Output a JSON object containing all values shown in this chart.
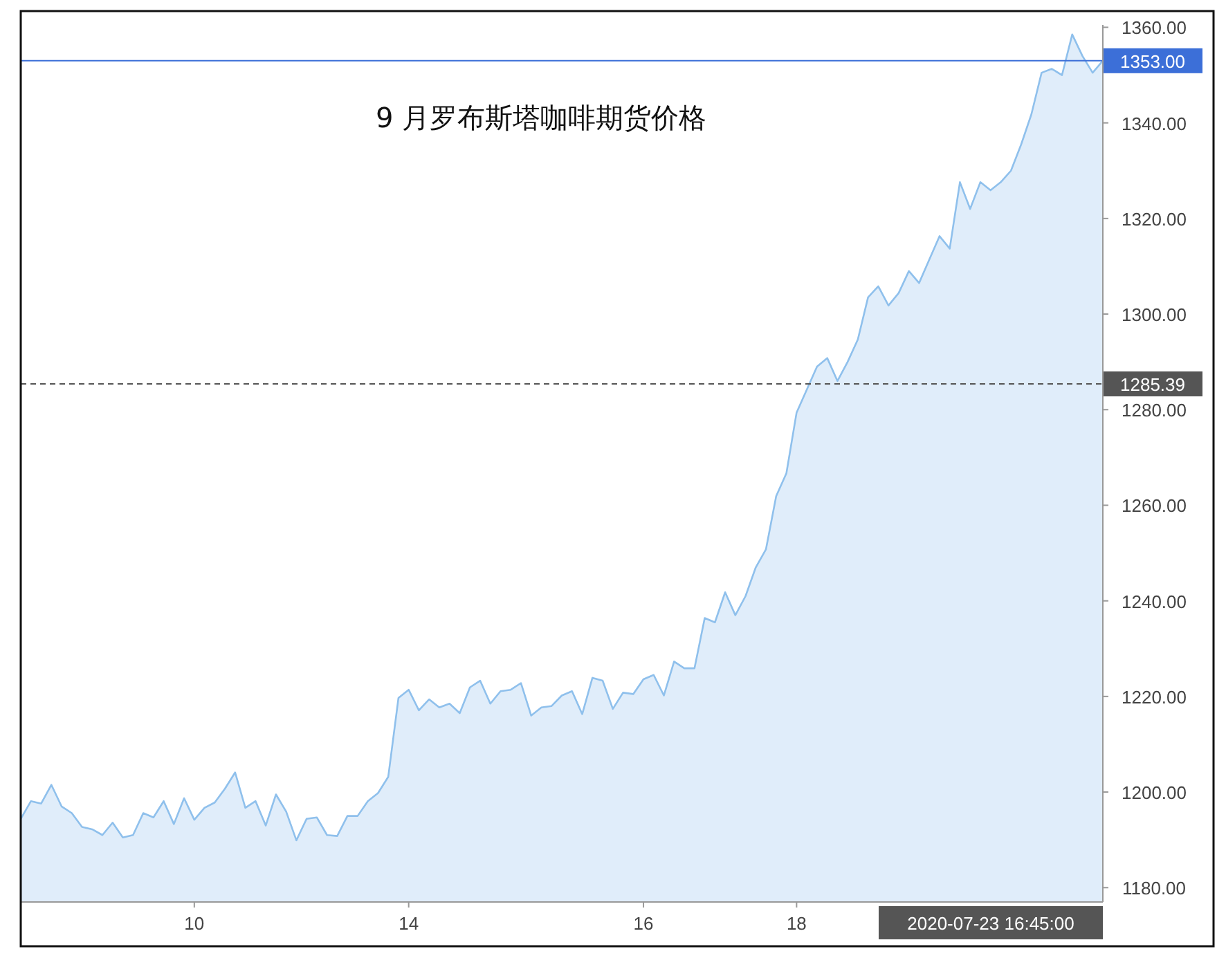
{
  "chart_data": {
    "type": "area",
    "title": "9 月罗布斯塔咖啡期货价格",
    "categories": [
      null,
      null,
      null,
      null,
      null,
      null,
      null,
      null,
      null,
      null,
      null,
      null,
      null,
      null,
      null,
      null,
      null,
      "10",
      null,
      null,
      null,
      null,
      null,
      null,
      null,
      null,
      null,
      null,
      null,
      null,
      null,
      null,
      null,
      null,
      null,
      null,
      null,
      null,
      "14",
      null,
      null,
      null,
      null,
      null,
      null,
      null,
      null,
      null,
      null,
      null,
      null,
      null,
      null,
      null,
      null,
      null,
      null,
      null,
      null,
      null,
      null,
      "16",
      null,
      null,
      null,
      null,
      null,
      null,
      null,
      null,
      null,
      null,
      null,
      null,
      null,
      null,
      "18",
      null,
      null,
      null,
      null,
      null,
      null,
      null,
      null,
      null,
      null,
      null,
      null,
      null,
      null,
      null,
      null,
      null,
      null,
      null,
      null,
      null,
      null,
      null,
      null,
      null,
      null,
      null,
      null,
      null,
      null
    ],
    "series": [
      {
        "color": "#8fc0ec",
        "values": [
          1194.4,
          1198.1,
          1197.6,
          1201.5,
          1197,
          1195.6,
          1192.7,
          1192.2,
          1191,
          1193.6,
          1190.5,
          1191,
          1195.6,
          1194.7,
          1198.1,
          1193.3,
          1198.7,
          1194.2,
          1196.7,
          1197.8,
          1200.7,
          1204.1,
          1196.7,
          1198.1,
          1193,
          1199.5,
          1195.9,
          1189.9,
          1194.4,
          1194.7,
          1191,
          1190.8,
          1195,
          1195,
          1198.1,
          1199.8,
          1203.2,
          1219.7,
          1221.4,
          1217.1,
          1219.4,
          1217.7,
          1218.5,
          1216.5,
          1221.9,
          1223.3,
          1218.5,
          1221.1,
          1221.4,
          1222.8,
          1216,
          1217.7,
          1218,
          1220.2,
          1221.1,
          1216.3,
          1223.9,
          1223.3,
          1217.4,
          1220.8,
          1220.5,
          1223.6,
          1224.5,
          1220.2,
          1227.3,
          1225.9,
          1225.9,
          1236.4,
          1235.5,
          1241.8,
          1237,
          1241,
          1247,
          1250.8,
          1261.9,
          1266.7,
          1279.4,
          1284.2,
          1289,
          1290.8,
          1286,
          1290,
          1294.7,
          1303.5,
          1305.8,
          1301.8,
          1304.4,
          1309,
          1306.5,
          1311.4,
          1316.3,
          1313.7,
          1327.6,
          1322,
          1327.6,
          1325.9,
          1327.6,
          1330,
          1335.5,
          1341.8,
          1350.5,
          1351.3,
          1350,
          1358.5,
          1354,
          1350.5,
          1353
        ]
      }
    ],
    "ylim": [
      1177,
      1360.5
    ],
    "yticks": [
      {
        "value": 1180,
        "label": "1180.00"
      },
      {
        "value": 1200,
        "label": "1200.00"
      },
      {
        "value": 1220,
        "label": "1220.00"
      },
      {
        "value": 1240,
        "label": "1240.00"
      },
      {
        "value": 1260,
        "label": "1260.00"
      },
      {
        "value": 1280,
        "label": "1280.00"
      },
      {
        "value": 1300,
        "label": "1300.00"
      },
      {
        "value": 1320,
        "label": "1320.00"
      },
      {
        "value": 1340,
        "label": "1340.00"
      },
      {
        "value": 1360,
        "label": "1360.00"
      }
    ],
    "ref_lines": [
      {
        "axis": "y",
        "value": 1353,
        "label": "1353.00",
        "color": "#3c6fd8",
        "line_style": "solid"
      },
      {
        "axis": "y",
        "value": 1285.39,
        "label": "1285.39",
        "color": "#555555",
        "line_style": "dashed"
      }
    ],
    "annotations": [
      "2020-07-23 16:45:00"
    ],
    "grid": false
  }
}
